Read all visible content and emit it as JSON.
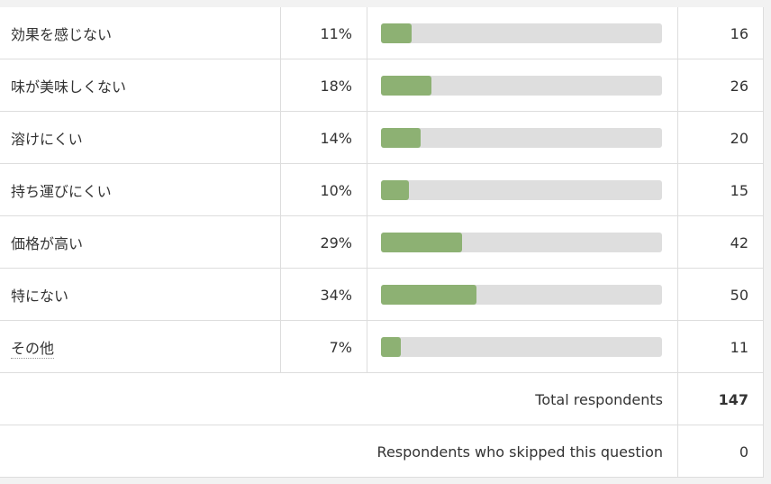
{
  "table": {
    "rows": [
      {
        "label": "効果を感じない",
        "percent": 11,
        "percent_label": "11%",
        "count": 16
      },
      {
        "label": "味が美味しくない",
        "percent": 18,
        "percent_label": "18%",
        "count": 26
      },
      {
        "label": "溶けにくい",
        "percent": 14,
        "percent_label": "14%",
        "count": 20
      },
      {
        "label": "持ち運びにくい",
        "percent": 10,
        "percent_label": "10%",
        "count": 15
      },
      {
        "label": "価格が高い",
        "percent": 29,
        "percent_label": "29%",
        "count": 42
      },
      {
        "label": "特にない",
        "percent": 34,
        "percent_label": "34%",
        "count": 50
      },
      {
        "label": "その他",
        "percent": 7,
        "percent_label": "7%",
        "count": 11
      }
    ],
    "xlim": [
      0,
      100
    ],
    "bar_color": "#8db173",
    "track_color": "#dedede",
    "total_label": "Total respondents",
    "total": 147,
    "skipped_label": "Respondents who skipped this question",
    "skipped": 0
  }
}
